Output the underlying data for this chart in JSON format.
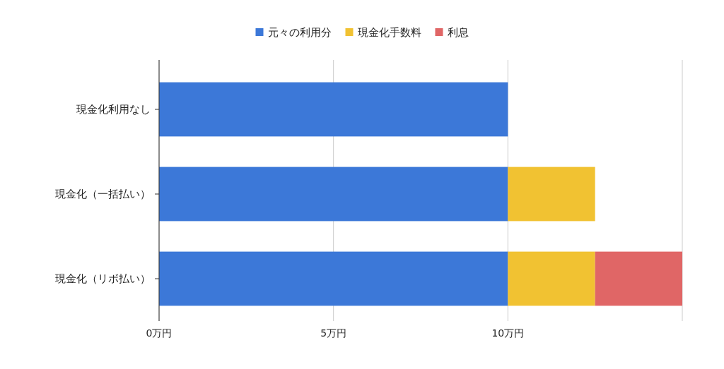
{
  "chart_data": {
    "type": "bar",
    "orientation": "horizontal",
    "stacked": true,
    "categories": [
      "現金化利用なし",
      "現金化（一括払い）",
      "現金化（リボ払い）"
    ],
    "series": [
      {
        "name": "元々の利用分",
        "color": "#3c78d8",
        "values": [
          10,
          10,
          10
        ]
      },
      {
        "name": "現金化手数料",
        "color": "#f1c232",
        "values": [
          null,
          2.5,
          2.5
        ]
      },
      {
        "name": "利息",
        "color": "#e06666",
        "values": [
          null,
          null,
          2.5
        ]
      }
    ],
    "xlim": [
      0,
      15
    ],
    "xticks": [
      {
        "value": 0,
        "label": "0万円"
      },
      {
        "value": 5,
        "label": "5万円"
      },
      {
        "value": 10,
        "label": "10万円"
      },
      {
        "value": 15,
        "label": null
      }
    ],
    "grid": "x",
    "legend": "top"
  }
}
